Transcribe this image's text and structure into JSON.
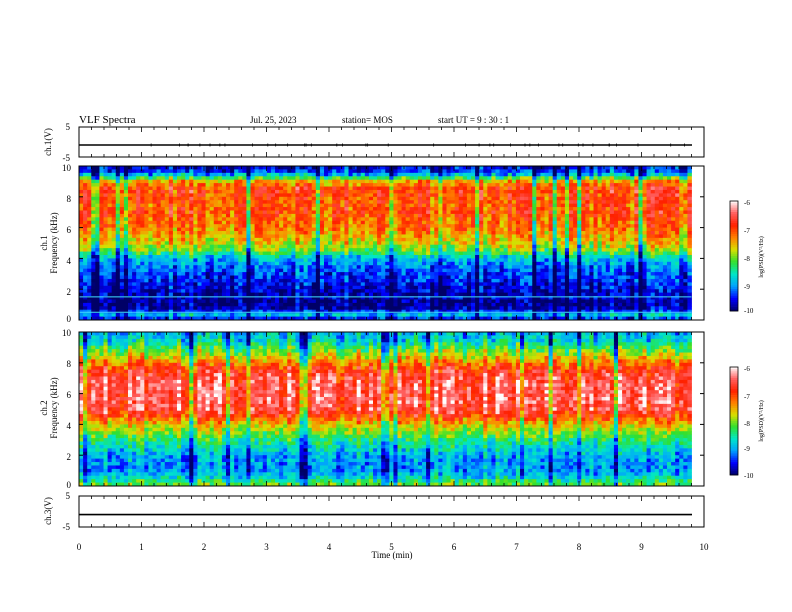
{
  "header": {
    "title": "VLF Spectra",
    "date": "Jul. 25, 2023",
    "station": "station= MOS",
    "start": "start UT =   9 : 30 : 1"
  },
  "chart_data": [
    {
      "type": "line",
      "name": "ch.1 waveform",
      "ylabel": "ch.1(V)",
      "ylim": [
        -5,
        5
      ],
      "y_ticks": [
        "5",
        "-5"
      ],
      "x_range": [
        0,
        10
      ],
      "series": [
        {
          "values": [
            -1.0
          ]
        }
      ]
    },
    {
      "type": "heatmap",
      "name": "ch.1 spectrogram",
      "ylabel_line1": "ch.1",
      "ylabel_line2": "Frequency (kHz)",
      "ylim": [
        0,
        10
      ],
      "y_ticks": [
        "0",
        "2",
        "4",
        "6",
        "8",
        "10"
      ],
      "x_range": [
        0,
        9.8
      ],
      "colorbar": {
        "label": "log(PSD)(V²/Hz)",
        "range": [
          -10,
          -6
        ],
        "ticks": [
          "-6",
          "-7",
          "-8",
          "-9",
          "-10"
        ]
      },
      "profile": [
        [
          0.0,
          -9.8
        ],
        [
          0.3,
          -8.8
        ],
        [
          0.6,
          -9.6
        ],
        [
          1.0,
          -9.9
        ],
        [
          1.5,
          -9.8
        ],
        [
          2.0,
          -9.7
        ],
        [
          2.5,
          -9.5
        ],
        [
          3.0,
          -9.4
        ],
        [
          3.5,
          -9.2
        ],
        [
          4.0,
          -8.9
        ],
        [
          4.5,
          -8.1
        ],
        [
          5.0,
          -7.7
        ],
        [
          5.5,
          -7.5
        ],
        [
          6.0,
          -7.2
        ],
        [
          6.5,
          -7.2
        ],
        [
          7.0,
          -7.0
        ],
        [
          7.5,
          -7.1
        ],
        [
          8.0,
          -7.0
        ],
        [
          8.5,
          -6.9
        ],
        [
          9.0,
          -7.5
        ],
        [
          9.3,
          -8.5
        ],
        [
          9.6,
          -9.4
        ],
        [
          10.0,
          -9.7
        ]
      ],
      "lines_khz": [
        0.5,
        1.5
      ]
    },
    {
      "type": "heatmap",
      "name": "ch.2 spectrogram",
      "ylabel_line1": "ch.2",
      "ylabel_line2": "Frequency (kHz)",
      "ylim": [
        0,
        10
      ],
      "y_ticks": [
        "0",
        "2",
        "4",
        "6",
        "8",
        "10"
      ],
      "x_range": [
        0,
        9.8
      ],
      "colorbar": {
        "label": "log(PSD)(V²/Hz)",
        "range": [
          -10,
          -6
        ],
        "ticks": [
          "-6",
          "-7",
          "-8",
          "-9",
          "-10"
        ]
      },
      "profile": [
        [
          0.0,
          -8.0
        ],
        [
          0.5,
          -8.7
        ],
        [
          1.0,
          -9.1
        ],
        [
          1.5,
          -9.1
        ],
        [
          2.0,
          -9.0
        ],
        [
          2.5,
          -8.7
        ],
        [
          3.0,
          -8.4
        ],
        [
          3.5,
          -8.0
        ],
        [
          4.0,
          -7.6
        ],
        [
          4.5,
          -7.0
        ],
        [
          5.0,
          -6.6
        ],
        [
          5.5,
          -6.5
        ],
        [
          6.0,
          -6.5
        ],
        [
          6.5,
          -6.5
        ],
        [
          7.0,
          -6.6
        ],
        [
          7.5,
          -6.8
        ],
        [
          8.0,
          -7.3
        ],
        [
          8.5,
          -7.8
        ],
        [
          9.0,
          -8.3
        ],
        [
          9.5,
          -8.8
        ],
        [
          10.0,
          -9.0
        ]
      ],
      "lines_khz": []
    },
    {
      "type": "line",
      "name": "ch.3 waveform",
      "ylabel": "ch.3(V)",
      "ylim": [
        -5,
        5
      ],
      "y_ticks": [
        "5",
        "-5"
      ],
      "x_range": [
        0,
        10
      ],
      "series": [
        {
          "values": [
            -1.0
          ]
        }
      ]
    }
  ],
  "x_axis": {
    "label": "Time (min)",
    "ticks": [
      "0",
      "1",
      "2",
      "3",
      "4",
      "5",
      "6",
      "7",
      "8",
      "9",
      "10"
    ],
    "range": [
      0,
      10
    ]
  },
  "colors": {
    "colormap": [
      "#000066",
      "#0000ff",
      "#00a0ff",
      "#00e6c8",
      "#30e030",
      "#d8e000",
      "#ff8000",
      "#ff2000",
      "#ff6060",
      "#ffffff"
    ]
  }
}
